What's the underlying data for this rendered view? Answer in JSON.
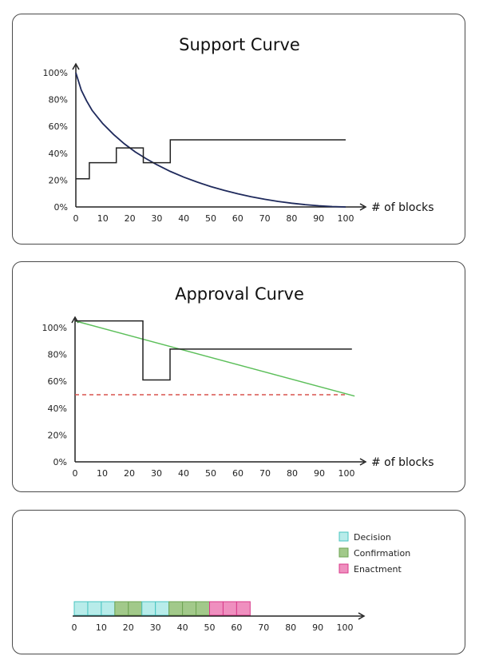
{
  "chart_data": [
    {
      "type": "line",
      "title": "Support Curve",
      "xlabel": "# of blocks",
      "ylabel": "",
      "xlim": [
        0,
        100
      ],
      "ylim": [
        0,
        100
      ],
      "x_ticks": [
        "0",
        "10",
        "20",
        "30",
        "40",
        "50",
        "60",
        "70",
        "80",
        "90",
        "100"
      ],
      "y_ticks": [
        "0%",
        "20%",
        "40%",
        "60%",
        "80%",
        "100%"
      ],
      "grid": false,
      "series": [
        {
          "kind": "curve",
          "color": "#1f2a5c",
          "x": [
            0,
            2,
            4,
            6,
            8,
            10,
            14,
            18,
            22,
            26,
            30,
            35,
            40,
            45,
            50,
            55,
            60,
            65,
            70,
            75,
            80,
            85,
            90,
            95,
            100
          ],
          "y": [
            100,
            87,
            79,
            72,
            67,
            62,
            54,
            47,
            41,
            36,
            31.5,
            26.5,
            22.2,
            18.5,
            15.2,
            12.3,
            9.8,
            7.6,
            5.7,
            4.1,
            2.8,
            1.7,
            0.9,
            0.3,
            0
          ]
        },
        {
          "kind": "step",
          "color": "#222222",
          "x": [
            0,
            5,
            5,
            15,
            15,
            25,
            25,
            35,
            35,
            100
          ],
          "y": [
            21,
            21,
            33,
            33,
            44,
            44,
            33,
            33,
            50,
            50
          ]
        }
      ]
    },
    {
      "type": "line",
      "title": "Approval Curve",
      "xlabel": "# of blocks",
      "ylabel": "",
      "xlim": [
        0,
        100
      ],
      "ylim": [
        0,
        100
      ],
      "x_ticks": [
        "0",
        "10",
        "20",
        "30",
        "40",
        "50",
        "60",
        "70",
        "80",
        "90",
        "100"
      ],
      "y_ticks": [
        "0%",
        "20%",
        "40%",
        "60%",
        "80%",
        "100%"
      ],
      "grid": false,
      "series": [
        {
          "kind": "linear",
          "color": "#5cbf5a",
          "x": [
            0,
            103
          ],
          "y": [
            105,
            49
          ]
        },
        {
          "kind": "step",
          "color": "#222222",
          "x": [
            0,
            25,
            25,
            35,
            35,
            102
          ],
          "y": [
            105,
            105,
            61,
            61,
            84,
            84
          ]
        },
        {
          "kind": "threshold",
          "color": "#d9534f",
          "x": [
            0,
            100
          ],
          "y": [
            50,
            50
          ]
        }
      ]
    },
    {
      "type": "bar",
      "title": "",
      "xlabel": "",
      "xlim": [
        0,
        100
      ],
      "x_ticks": [
        "0",
        "10",
        "20",
        "30",
        "40",
        "50",
        "60",
        "70",
        "80",
        "90",
        "100"
      ],
      "legend_position": "top-right",
      "legend": [
        {
          "name": "Decision",
          "color": "#b8ecea",
          "stroke": "#48c4c0"
        },
        {
          "name": "Confirmation",
          "color": "#a2c98a",
          "stroke": "#6ea453"
        },
        {
          "name": "Enactment",
          "color": "#ef8fbf",
          "stroke": "#d83a8a"
        }
      ],
      "segments": [
        {
          "phase": "Decision",
          "start": 0,
          "end": 15,
          "blocks": 3
        },
        {
          "phase": "Confirmation",
          "start": 15,
          "end": 25,
          "blocks": 2
        },
        {
          "phase": "Decision",
          "start": 25,
          "end": 35,
          "blocks": 2
        },
        {
          "phase": "Confirmation",
          "start": 35,
          "end": 50,
          "blocks": 3
        },
        {
          "phase": "Enactment",
          "start": 50,
          "end": 65,
          "blocks": 3
        }
      ]
    }
  ]
}
